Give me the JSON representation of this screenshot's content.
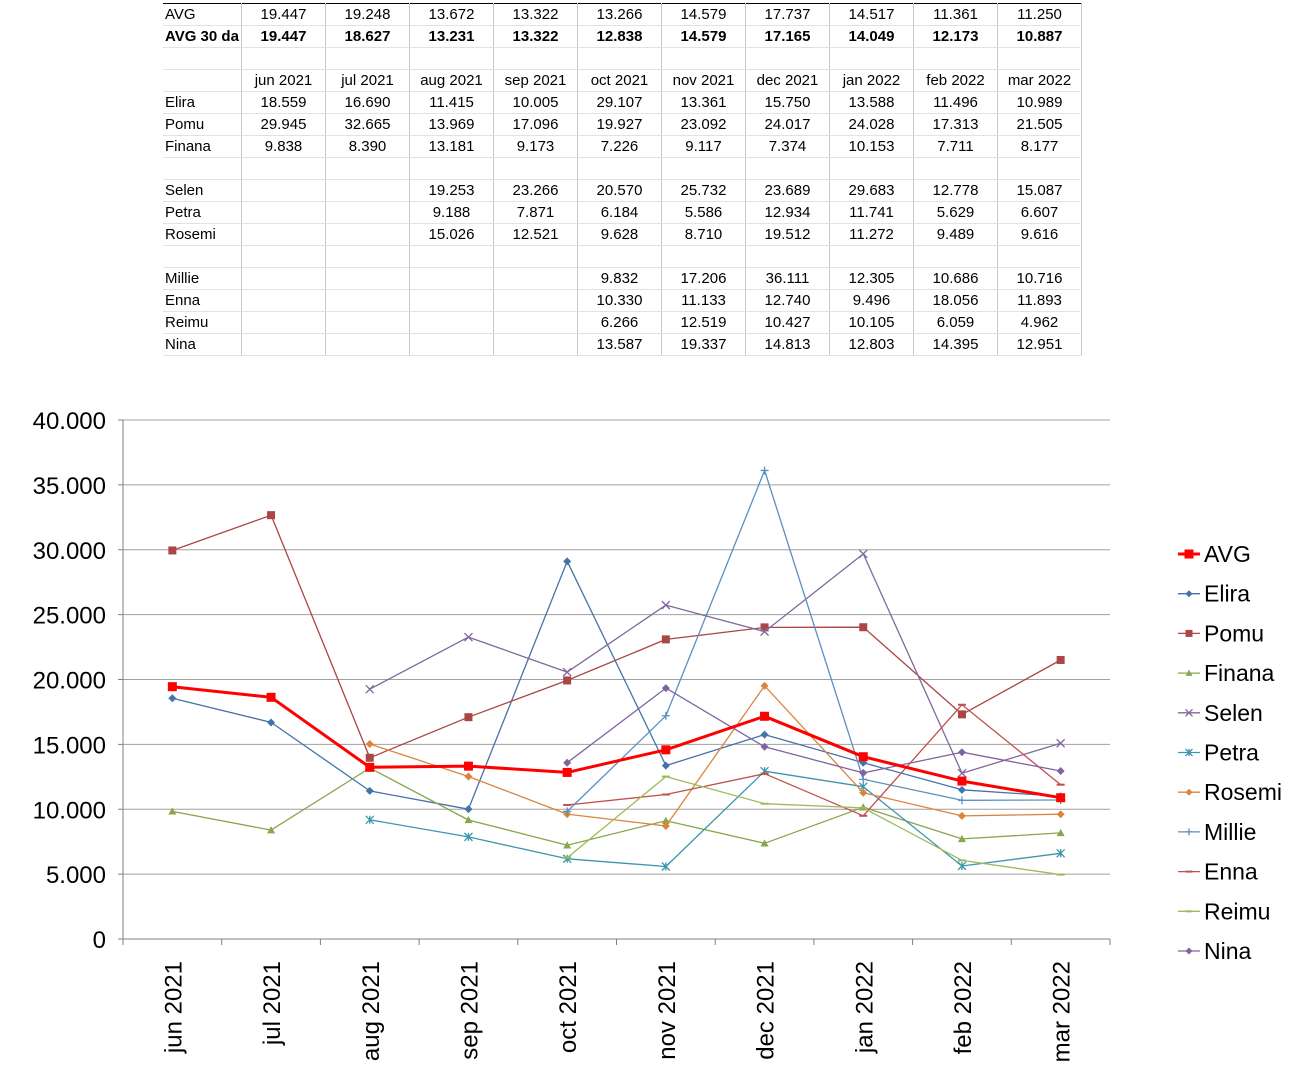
{
  "table": {
    "rows": [
      {
        "label": "AVG",
        "bold": false,
        "cells": [
          "19.447",
          "19.248",
          "13.672",
          "13.322",
          "13.266",
          "14.579",
          "17.737",
          "14.517",
          "11.361",
          "11.250"
        ]
      },
      {
        "label": "AVG 30 da",
        "bold": true,
        "cells": [
          "19.447",
          "18.627",
          "13.231",
          "13.322",
          "12.838",
          "14.579",
          "17.165",
          "14.049",
          "12.173",
          "10.887"
        ]
      },
      {
        "label": "",
        "bold": false,
        "cells": [
          "",
          "",
          "",
          "",
          "",
          "",
          "",
          "",
          "",
          ""
        ]
      },
      {
        "label": "",
        "bold": false,
        "cells": [
          "jun 2021",
          "jul 2021",
          "aug 2021",
          "sep 2021",
          "oct 2021",
          "nov 2021",
          "dec 2021",
          "jan 2022",
          "feb 2022",
          "mar 2022"
        ]
      },
      {
        "label": "Elira",
        "bold": false,
        "cells": [
          "18.559",
          "16.690",
          "11.415",
          "10.005",
          "29.107",
          "13.361",
          "15.750",
          "13.588",
          "11.496",
          "10.989"
        ]
      },
      {
        "label": "Pomu",
        "bold": false,
        "cells": [
          "29.945",
          "32.665",
          "13.969",
          "17.096",
          "19.927",
          "23.092",
          "24.017",
          "24.028",
          "17.313",
          "21.505"
        ]
      },
      {
        "label": "Finana",
        "bold": false,
        "cells": [
          "9.838",
          "8.390",
          "13.181",
          "9.173",
          "7.226",
          "9.117",
          "7.374",
          "10.153",
          "7.711",
          "8.177"
        ]
      },
      {
        "label": "",
        "bold": false,
        "cells": [
          "",
          "",
          "",
          "",
          "",
          "",
          "",
          "",
          "",
          ""
        ]
      },
      {
        "label": "Selen",
        "bold": false,
        "cells": [
          "",
          "",
          "19.253",
          "23.266",
          "20.570",
          "25.732",
          "23.689",
          "29.683",
          "12.778",
          "15.087"
        ]
      },
      {
        "label": "Petra",
        "bold": false,
        "cells": [
          "",
          "",
          "9.188",
          "7.871",
          "6.184",
          "5.586",
          "12.934",
          "11.741",
          "5.629",
          "6.607"
        ]
      },
      {
        "label": "Rosemi",
        "bold": false,
        "cells": [
          "",
          "",
          "15.026",
          "12.521",
          "9.628",
          "8.710",
          "19.512",
          "11.272",
          "9.489",
          "9.616"
        ]
      },
      {
        "label": "",
        "bold": false,
        "cells": [
          "",
          "",
          "",
          "",
          "",
          "",
          "",
          "",
          "",
          ""
        ]
      },
      {
        "label": "Millie",
        "bold": false,
        "cells": [
          "",
          "",
          "",
          "",
          "9.832",
          "17.206",
          "36.111",
          "12.305",
          "10.686",
          "10.716"
        ]
      },
      {
        "label": "Enna",
        "bold": false,
        "cells": [
          "",
          "",
          "",
          "",
          "10.330",
          "11.133",
          "12.740",
          "9.496",
          "18.056",
          "11.893"
        ]
      },
      {
        "label": "Reimu",
        "bold": false,
        "cells": [
          "",
          "",
          "",
          "",
          "6.266",
          "12.519",
          "10.427",
          "10.105",
          "6.059",
          "4.962"
        ]
      },
      {
        "label": "Nina",
        "bold": false,
        "cells": [
          "",
          "",
          "",
          "",
          "13.587",
          "19.337",
          "14.813",
          "12.803",
          "14.395",
          "12.951"
        ]
      }
    ]
  },
  "chart_data": {
    "type": "line",
    "categories": [
      "jun 2021",
      "jul 2021",
      "aug 2021",
      "sep 2021",
      "oct 2021",
      "nov 2021",
      "dec 2021",
      "jan 2022",
      "feb 2022",
      "mar 2022"
    ],
    "ylim": [
      0,
      40
    ],
    "yticks": [
      0,
      5,
      10,
      15,
      20,
      25,
      30,
      35,
      40
    ],
    "ytick_labels": [
      "0",
      "5.000",
      "10.000",
      "15.000",
      "20.000",
      "25.000",
      "30.000",
      "35.000",
      "40.000"
    ],
    "grid": true,
    "legend": "right",
    "series": [
      {
        "name": "AVG",
        "color": "#ff0000",
        "marker": "square",
        "width": 3,
        "values": [
          19.447,
          18.627,
          13.231,
          13.322,
          12.838,
          14.579,
          17.165,
          14.049,
          12.173,
          10.887
        ]
      },
      {
        "name": "Elira",
        "color": "#4572a7",
        "marker": "diamond",
        "width": 1.3,
        "values": [
          18.559,
          16.69,
          11.415,
          10.005,
          29.107,
          13.361,
          15.75,
          13.588,
          11.496,
          10.989
        ]
      },
      {
        "name": "Pomu",
        "color": "#aa4643",
        "marker": "square",
        "width": 1.3,
        "values": [
          29.945,
          32.665,
          13.969,
          17.096,
          19.927,
          23.092,
          24.017,
          24.028,
          17.313,
          21.505
        ]
      },
      {
        "name": "Finana",
        "color": "#89a54e",
        "marker": "triangle",
        "width": 1.3,
        "values": [
          9.838,
          8.39,
          13.181,
          9.173,
          7.226,
          9.117,
          7.374,
          10.153,
          7.711,
          8.177
        ]
      },
      {
        "name": "Selen",
        "color": "#80699b",
        "marker": "x",
        "width": 1.3,
        "values": [
          null,
          null,
          19.253,
          23.266,
          20.57,
          25.732,
          23.689,
          29.683,
          12.778,
          15.087
        ]
      },
      {
        "name": "Petra",
        "color": "#3d96ae",
        "marker": "star",
        "width": 1.3,
        "values": [
          null,
          null,
          9.188,
          7.871,
          6.184,
          5.586,
          12.934,
          11.741,
          5.629,
          6.607
        ]
      },
      {
        "name": "Rosemi",
        "color": "#db843d",
        "marker": "diamond",
        "width": 1.3,
        "values": [
          null,
          null,
          15.026,
          12.521,
          9.628,
          8.71,
          19.512,
          11.272,
          9.489,
          9.616
        ]
      },
      {
        "name": "Millie",
        "color": "#5b8fbe",
        "marker": "plus",
        "width": 1.3,
        "values": [
          null,
          null,
          null,
          null,
          9.832,
          17.206,
          36.111,
          12.305,
          10.686,
          10.716
        ]
      },
      {
        "name": "Enna",
        "color": "#c0504d",
        "marker": "dash",
        "width": 1.3,
        "values": [
          null,
          null,
          null,
          null,
          10.33,
          11.133,
          12.74,
          9.496,
          18.056,
          11.893
        ]
      },
      {
        "name": "Reimu",
        "color": "#9bbb59",
        "marker": "dash",
        "width": 1.3,
        "values": [
          null,
          null,
          null,
          null,
          6.266,
          12.519,
          10.427,
          10.105,
          6.059,
          4.962
        ]
      },
      {
        "name": "Nina",
        "color": "#8064a2",
        "marker": "diamond",
        "width": 1.3,
        "values": [
          null,
          null,
          null,
          null,
          13.587,
          19.337,
          14.813,
          12.803,
          14.395,
          12.951
        ]
      }
    ]
  }
}
